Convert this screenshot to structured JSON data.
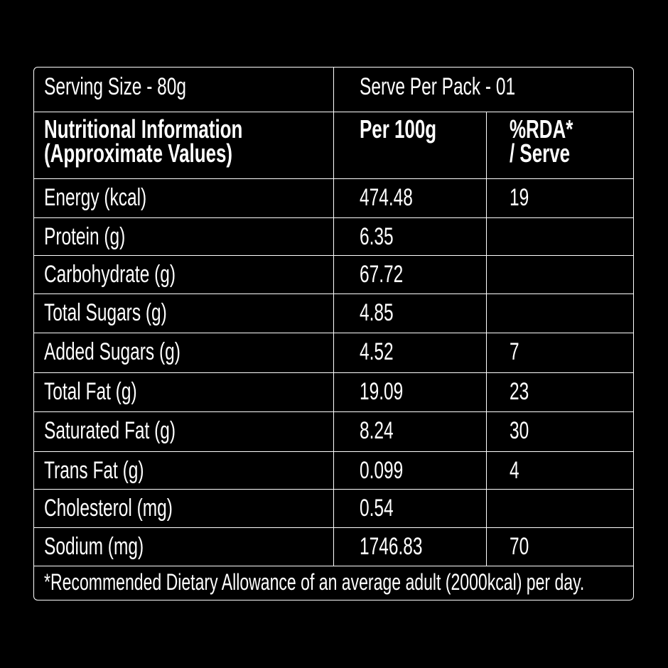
{
  "header": {
    "serving_size": "Serving Size - 80g",
    "serve_per_pack": "Serve Per Pack - 01"
  },
  "columns": {
    "nutrient_line1": "Nutritional Information",
    "nutrient_line2": "(Approximate Values)",
    "per100": "Per 100g",
    "rda_line1": "%RDA*",
    "rda_line2": "/ Serve"
  },
  "rows": [
    {
      "name": "Energy (kcal)",
      "per100": "474.48",
      "rda": "19"
    },
    {
      "name": "Protein (g)",
      "per100": "6.35",
      "rda": ""
    },
    {
      "name": "Carbohydrate (g)",
      "per100": "67.72",
      "rda": ""
    },
    {
      "name": "Total Sugars (g)",
      "per100": "4.85",
      "rda": ""
    },
    {
      "name": "Added Sugars (g)",
      "per100": "4.52",
      "rda": "7"
    },
    {
      "name": "Total Fat (g)",
      "per100": "19.09",
      "rda": "23"
    },
    {
      "name": "Saturated Fat (g)",
      "per100": "8.24",
      "rda": "30"
    },
    {
      "name": "Trans Fat (g)",
      "per100": "0.099",
      "rda": "4"
    },
    {
      "name": "Cholesterol (mg)",
      "per100": "0.54",
      "rda": ""
    },
    {
      "name": "Sodium (mg)",
      "per100": "1746.83",
      "rda": "70"
    }
  ],
  "footnote": "*Recommended Dietary Allowance of an average adult (2000kcal) per day."
}
